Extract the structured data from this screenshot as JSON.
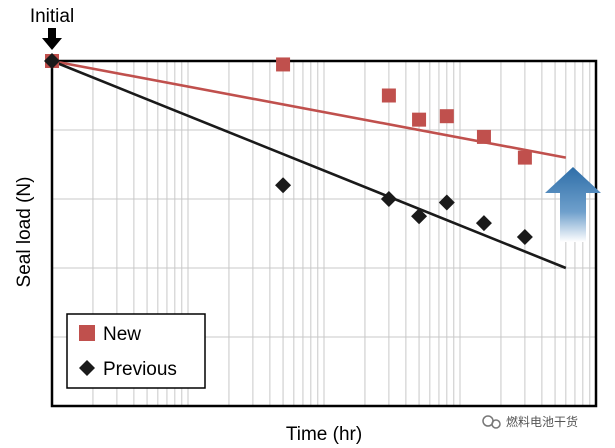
{
  "chart_data": {
    "type": "scatter",
    "xlabel": "Time (hr)",
    "ylabel": "Seal load (N)",
    "x_scale": "log",
    "grid": true,
    "legend_position": "bottom-left",
    "annotation": "Initial",
    "watermark": "燃料电池干货",
    "series": [
      {
        "name": "New",
        "marker": "square",
        "color": "#c0504d",
        "points": [
          [
            1,
            100
          ],
          [
            50,
            99
          ],
          [
            300,
            90
          ],
          [
            500,
            83
          ],
          [
            800,
            84
          ],
          [
            1500,
            78
          ],
          [
            3000,
            72
          ]
        ],
        "trend": [
          [
            1,
            100
          ],
          [
            6000,
            72
          ]
        ]
      },
      {
        "name": "Previous",
        "marker": "diamond",
        "color": "#1a1a1a",
        "points": [
          [
            1,
            100
          ],
          [
            50,
            64
          ],
          [
            300,
            60
          ],
          [
            500,
            55
          ],
          [
            800,
            59
          ],
          [
            1500,
            53
          ],
          [
            3000,
            49
          ]
        ],
        "trend": [
          [
            1,
            100
          ],
          [
            6000,
            40
          ]
        ]
      }
    ],
    "ylim": [
      0,
      100
    ],
    "xlim": [
      1,
      10000
    ]
  }
}
